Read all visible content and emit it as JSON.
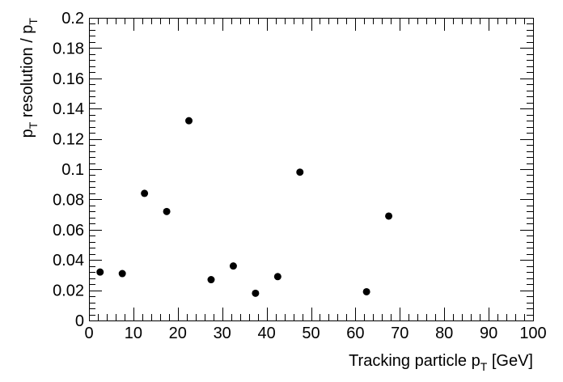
{
  "chart_data": {
    "type": "scatter",
    "title": "",
    "xlabel": {
      "main": "Tracking particle p",
      "subscript": "T",
      "suffix": " [GeV]"
    },
    "ylabel": {
      "part1": "p",
      "sub1": "T",
      "part2": " resolution / p",
      "sub2": "T"
    },
    "xlim": [
      0,
      100
    ],
    "ylim": [
      0,
      0.2
    ],
    "xticks": [
      0,
      10,
      20,
      30,
      40,
      50,
      60,
      70,
      80,
      90,
      100
    ],
    "xtick_labels": [
      "0",
      "10",
      "20",
      "30",
      "40",
      "50",
      "60",
      "70",
      "80",
      "90",
      "100"
    ],
    "yticks": [
      0,
      0.02,
      0.04,
      0.06,
      0.08,
      0.1,
      0.12,
      0.14,
      0.16,
      0.18,
      0.2
    ],
    "ytick_labels": [
      "0",
      "0.02",
      "0.04",
      "0.06",
      "0.08",
      "0.1",
      "0.12",
      "0.14",
      "0.16",
      "0.18",
      "0.2"
    ],
    "x_minor_per_major": 5,
    "y_minor_per_major": 5,
    "grid": false,
    "marker_color": "#000000",
    "points": [
      {
        "x": 2.5,
        "y": 0.032
      },
      {
        "x": 7.5,
        "y": 0.031
      },
      {
        "x": 12.5,
        "y": 0.084
      },
      {
        "x": 17.5,
        "y": 0.072
      },
      {
        "x": 22.5,
        "y": 0.132
      },
      {
        "x": 27.5,
        "y": 0.027
      },
      {
        "x": 32.5,
        "y": 0.036
      },
      {
        "x": 37.5,
        "y": 0.018
      },
      {
        "x": 42.5,
        "y": 0.029
      },
      {
        "x": 47.5,
        "y": 0.098
      },
      {
        "x": 62.5,
        "y": 0.019
      },
      {
        "x": 67.5,
        "y": 0.069
      }
    ]
  }
}
